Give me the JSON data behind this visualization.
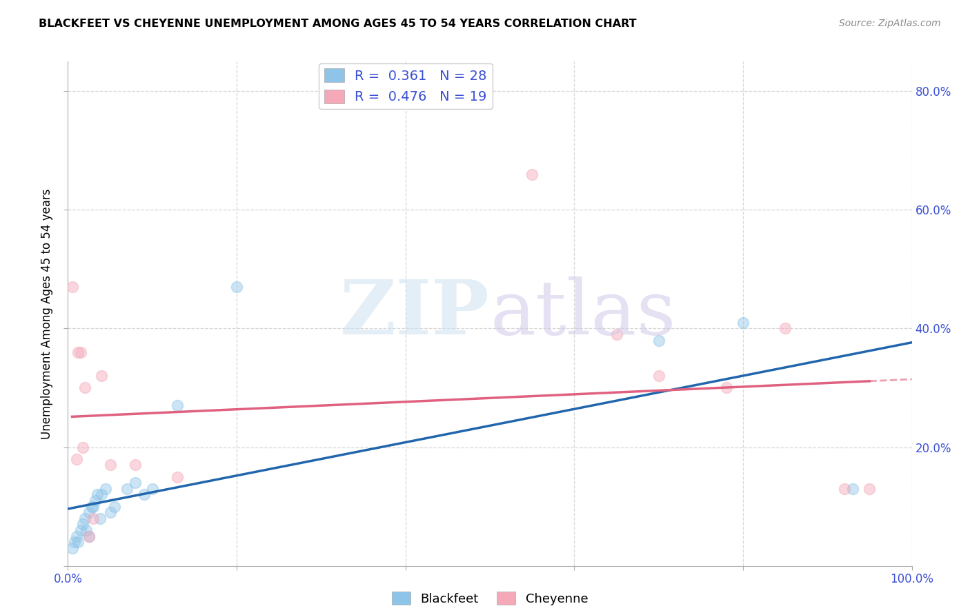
{
  "title": "BLACKFEET VS CHEYENNE UNEMPLOYMENT AMONG AGES 45 TO 54 YEARS CORRELATION CHART",
  "source": "Source: ZipAtlas.com",
  "ylabel": "Unemployment Among Ages 45 to 54 years",
  "xlim": [
    0,
    1.0
  ],
  "ylim": [
    0,
    0.85
  ],
  "blackfeet_color": "#8ec4e8",
  "cheyenne_color": "#f4a8b8",
  "blackfeet_line_color": "#2166ac",
  "cheyenne_line_color": "#e06080",
  "legend_color": "#3a4fd4",
  "blackfeet_R": 0.361,
  "blackfeet_N": 28,
  "cheyenne_R": 0.476,
  "cheyenne_N": 19,
  "blackfeet_x": [
    0.005,
    0.008,
    0.01,
    0.012,
    0.015,
    0.018,
    0.02,
    0.022,
    0.025,
    0.025,
    0.028,
    0.03,
    0.032,
    0.035,
    0.038,
    0.04,
    0.045,
    0.05,
    0.055,
    0.07,
    0.08,
    0.09,
    0.1,
    0.13,
    0.2,
    0.7,
    0.8,
    0.93
  ],
  "blackfeet_y": [
    0.03,
    0.04,
    0.05,
    0.04,
    0.06,
    0.07,
    0.08,
    0.06,
    0.05,
    0.09,
    0.1,
    0.1,
    0.11,
    0.12,
    0.08,
    0.12,
    0.13,
    0.09,
    0.1,
    0.13,
    0.14,
    0.12,
    0.13,
    0.27,
    0.47,
    0.38,
    0.41,
    0.13
  ],
  "cheyenne_x": [
    0.005,
    0.01,
    0.012,
    0.015,
    0.018,
    0.02,
    0.025,
    0.03,
    0.04,
    0.05,
    0.08,
    0.13,
    0.55,
    0.65,
    0.7,
    0.78,
    0.85,
    0.92,
    0.95
  ],
  "cheyenne_y": [
    0.47,
    0.18,
    0.36,
    0.36,
    0.2,
    0.3,
    0.05,
    0.08,
    0.32,
    0.17,
    0.17,
    0.15,
    0.66,
    0.39,
    0.32,
    0.3,
    0.4,
    0.13,
    0.13
  ],
  "background_color": "#ffffff",
  "marker_size": 130,
  "marker_alpha": 0.45,
  "grid_color": "#cccccc",
  "grid_linestyle": "--",
  "grid_alpha": 0.8
}
